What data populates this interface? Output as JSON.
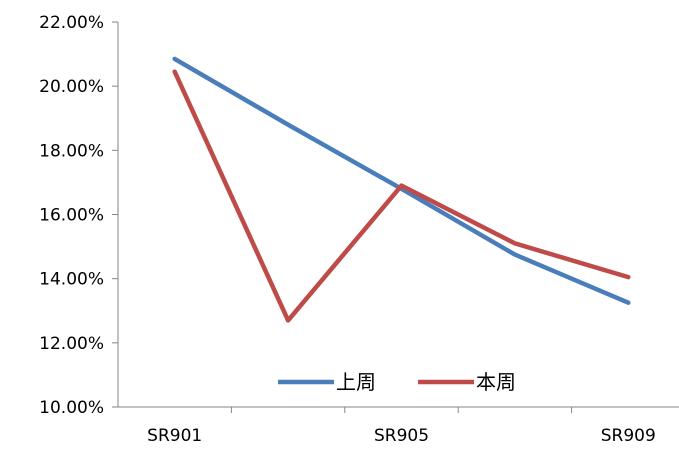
{
  "chart_data": {
    "type": "line",
    "title": "",
    "xlabel": "",
    "ylabel": "",
    "categories": [
      "SR901",
      "",
      "SR905",
      "",
      "SR909"
    ],
    "x_tick_labels": [
      "SR901",
      "SR905",
      "SR909"
    ],
    "ylim": [
      10,
      22
    ],
    "y_ticks": [
      10,
      12,
      14,
      16,
      18,
      20,
      22
    ],
    "y_tick_labels": [
      "10.00%",
      "12.00%",
      "14.00%",
      "16.00%",
      "18.00%",
      "20.00%",
      "22.00%"
    ],
    "grid": false,
    "legend_position": "bottom-right-inside",
    "series": [
      {
        "name": "上周",
        "color": "#4a7ebb",
        "values": [
          20.85,
          18.8,
          16.8,
          14.75,
          13.25
        ]
      },
      {
        "name": "本周",
        "color": "#be4b48",
        "values": [
          20.45,
          12.7,
          16.9,
          15.1,
          14.05
        ]
      }
    ]
  }
}
